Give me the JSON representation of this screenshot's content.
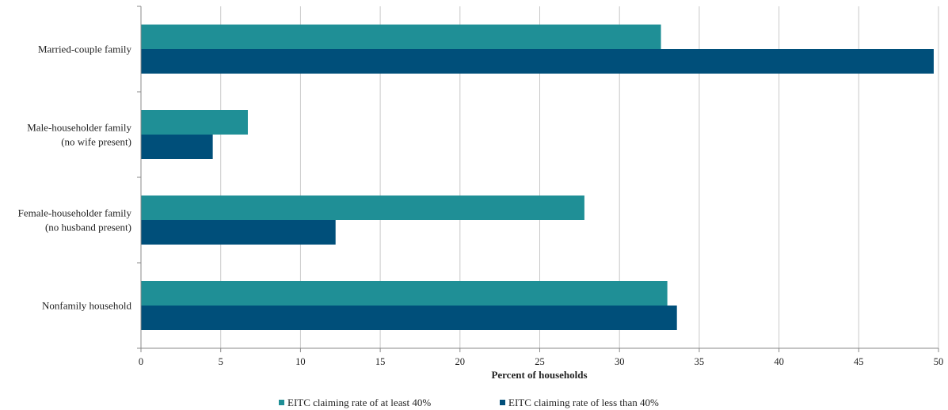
{
  "chart_data": {
    "type": "bar",
    "orientation": "horizontal",
    "categories": [
      [
        "Married-couple family"
      ],
      [
        "Male-householder family",
        "(no wife present)"
      ],
      [
        "Female-householder family",
        "(no husband present)"
      ],
      [
        "Nonfamily household"
      ]
    ],
    "series": [
      {
        "name": "EITC claiming rate of at least 40%",
        "color": "#1f8f96",
        "values": [
          32.6,
          6.7,
          27.8,
          33.0
        ]
      },
      {
        "name": "EITC claiming rate of less than 40%",
        "color": "#004f7a",
        "values": [
          49.7,
          4.5,
          12.2,
          33.6
        ]
      }
    ],
    "xlabel": "Percent of households",
    "ylabel": "",
    "title": "",
    "xlim": [
      0,
      50
    ],
    "xticks": [
      0,
      5,
      10,
      15,
      20,
      25,
      30,
      35,
      40,
      45,
      50
    ],
    "grid": "vertical",
    "legend": "bottom-center"
  }
}
